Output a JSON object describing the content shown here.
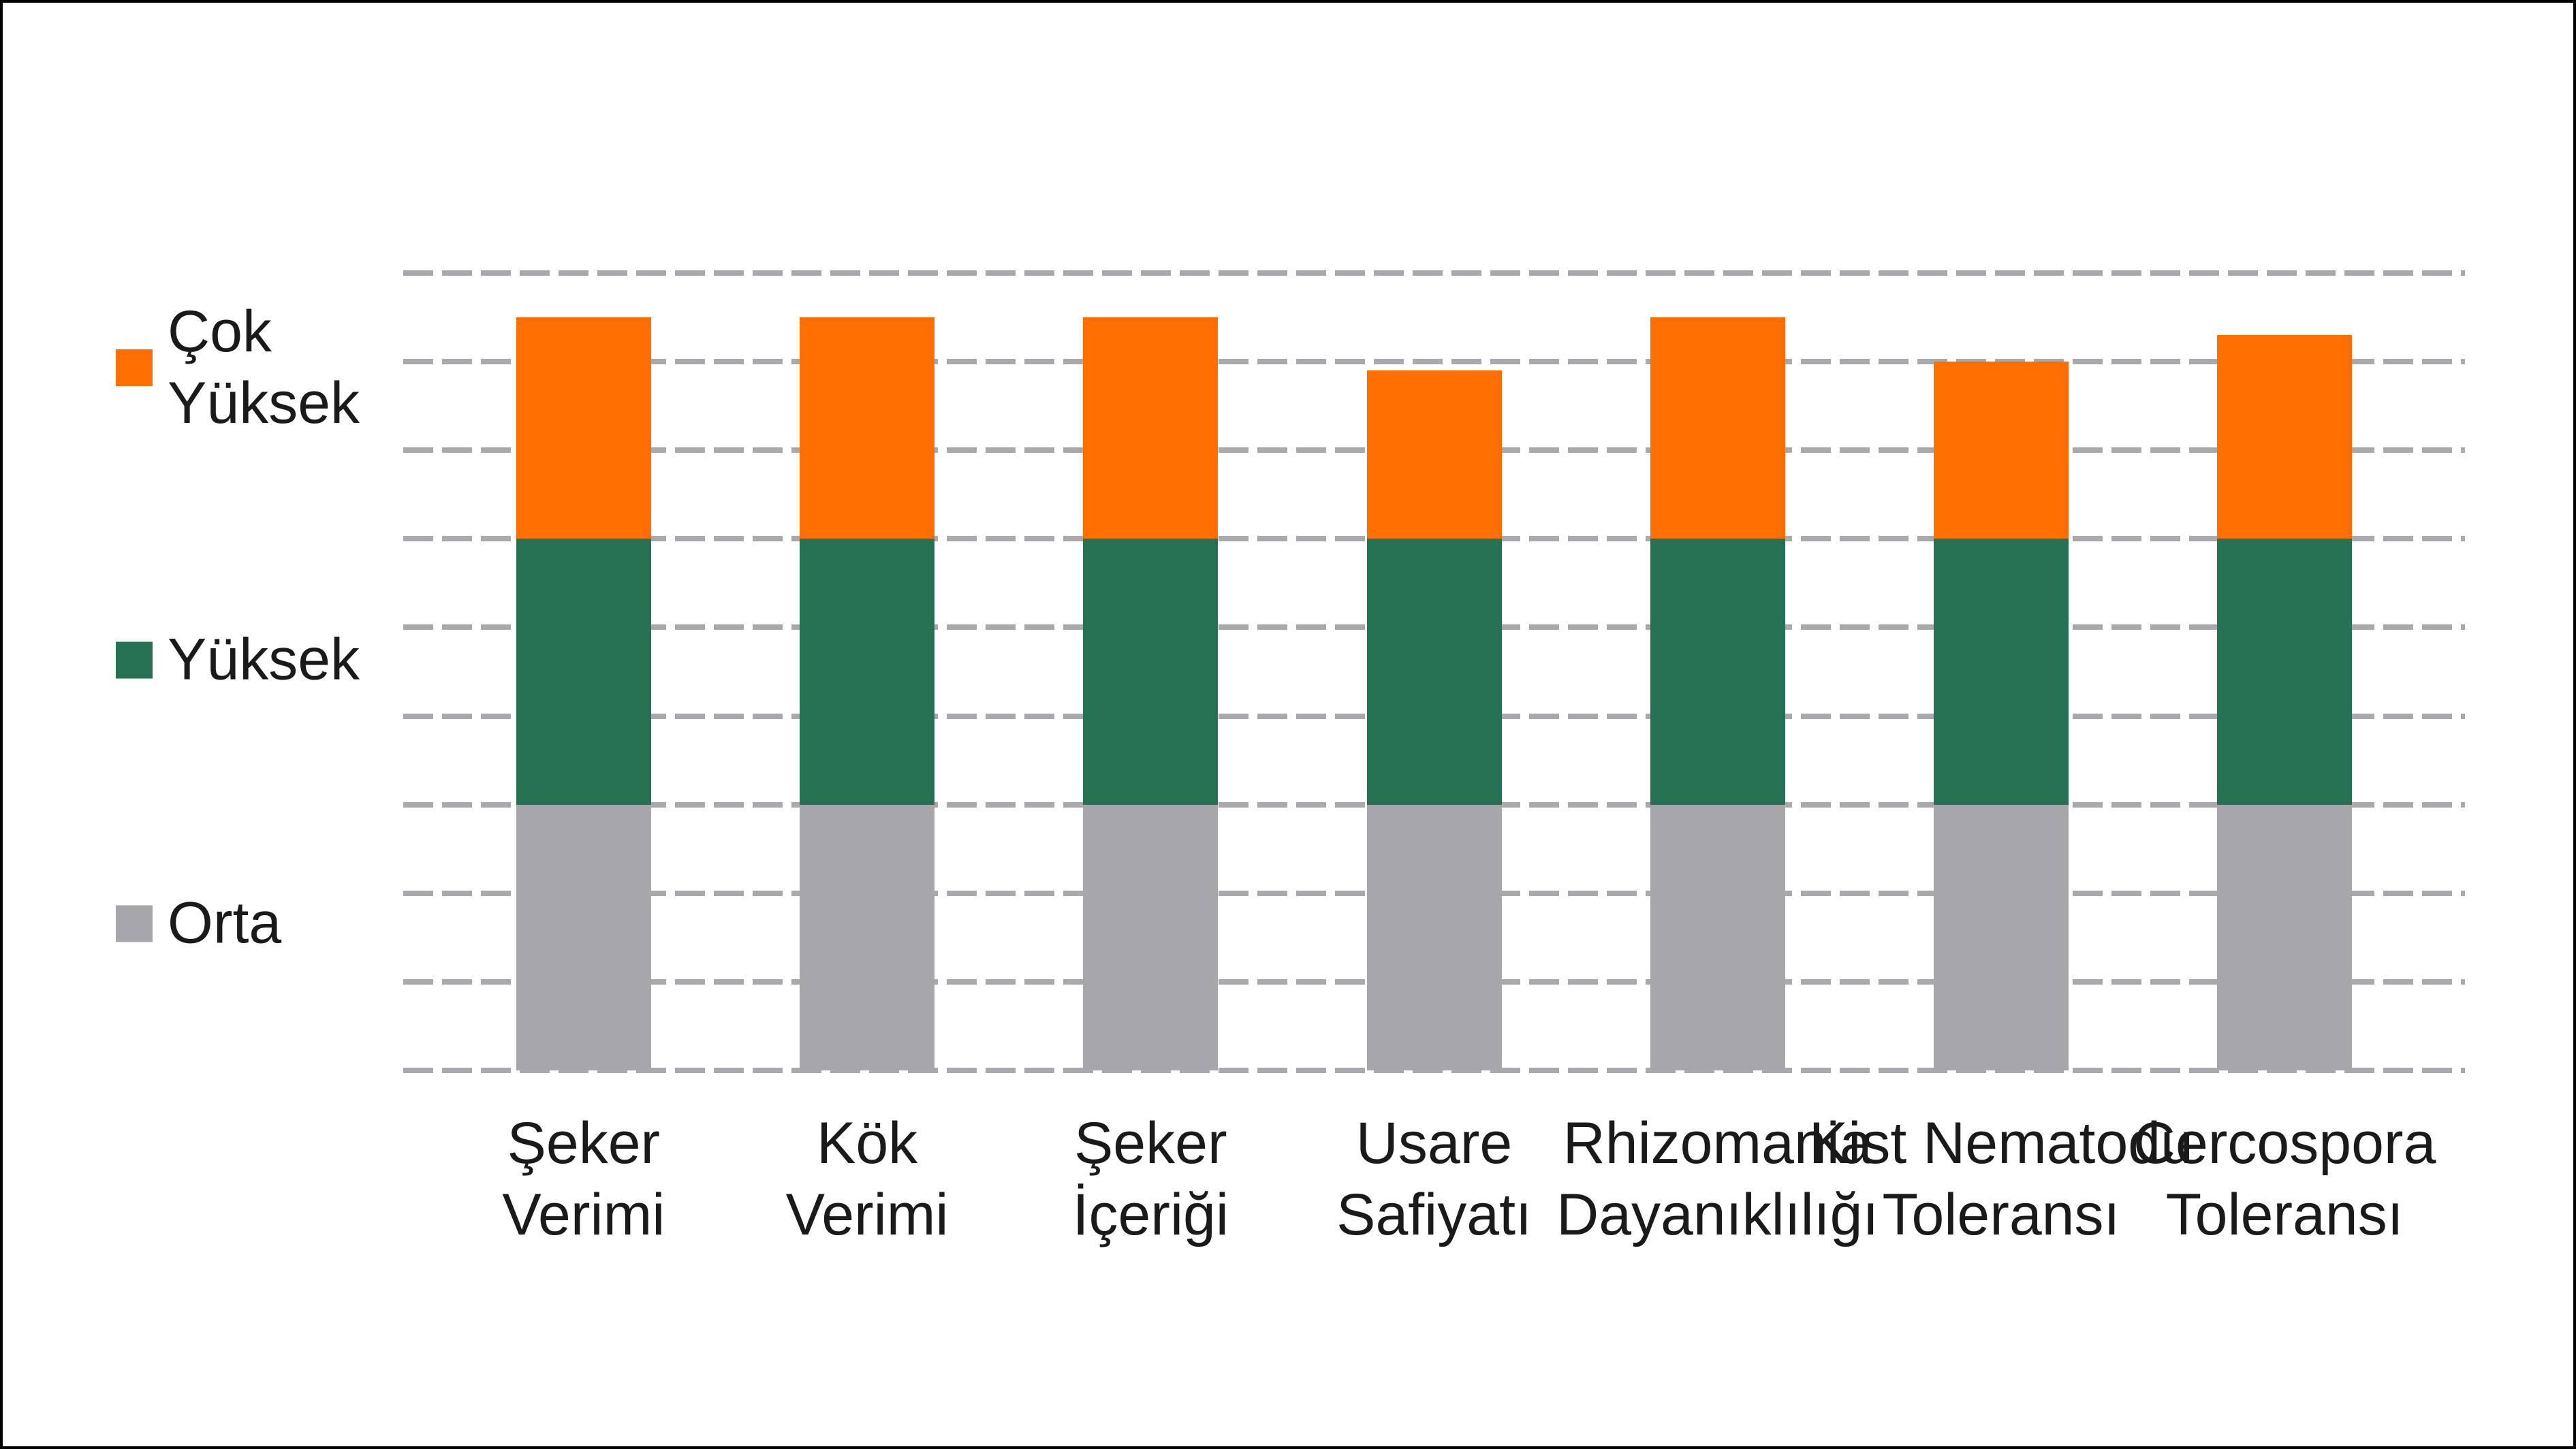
{
  "page": {
    "background_color": "#ffffff",
    "border_color": "#000000",
    "text_color": "#1a1a1a",
    "gridline_color": "#a9a9ad"
  },
  "legend": {
    "position": "left",
    "items": [
      {
        "key": "cok-yuksek",
        "label": "Çok\nYüksek",
        "color": "#ff6e00"
      },
      {
        "key": "yuksek",
        "label": "Yüksek",
        "color": "#267053"
      },
      {
        "key": "orta",
        "label": "Orta",
        "color": "#a7a7ab"
      }
    ]
  },
  "chart_data": {
    "type": "bar",
    "stacked": true,
    "title": "",
    "xlabel": "",
    "ylabel": "",
    "ylim": [
      0,
      9
    ],
    "gridline_step": 1,
    "grid": "horizontal-dashed",
    "axis_tick_labels": "none",
    "legend_position": "left",
    "categories": [
      "Şeker Verimi",
      "Kök Verimi",
      "Şeker İçeriği",
      "Usare Safiyatı",
      "Rhizomania Dayanıklılığı",
      "Kist Nematodu Toleransı",
      "Cercospora Toleransı"
    ],
    "category_label_lines": [
      [
        "Şeker",
        "Verimi"
      ],
      [
        "Kök",
        "Verimi"
      ],
      [
        "Şeker",
        "İçeriği"
      ],
      [
        "Usare",
        "Safiyatı"
      ],
      [
        "Rhizomania",
        "Dayanıklılığı"
      ],
      [
        "Kist Nematodu",
        "Toleransı"
      ],
      [
        "Cercospora",
        "Toleransı"
      ]
    ],
    "series": [
      {
        "name": "Orta",
        "color": "#a7a7ab",
        "values": [
          3,
          3,
          3,
          3,
          3,
          3,
          3
        ]
      },
      {
        "name": "Yüksek",
        "color": "#267053",
        "values": [
          3,
          3,
          3,
          3,
          3,
          3,
          3
        ]
      },
      {
        "name": "Çok Yüksek",
        "color": "#ff6e00",
        "values": [
          2.5,
          2.5,
          2.5,
          1.9,
          2.5,
          2.0,
          2.3
        ]
      }
    ],
    "totals": [
      8.5,
      8.5,
      8.5,
      7.9,
      8.5,
      8.0,
      8.3
    ]
  }
}
